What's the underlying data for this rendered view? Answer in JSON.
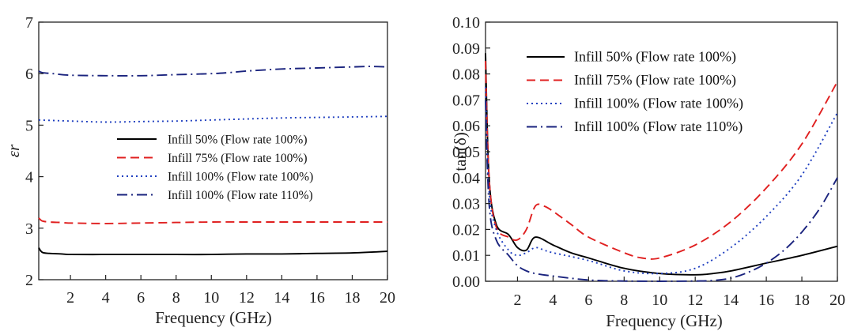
{
  "chart_data": [
    {
      "type": "line",
      "xlabel": "Frequency (GHz)",
      "ylabel": "εr",
      "xlim": [
        0.2,
        20
      ],
      "ylim": [
        2,
        7
      ],
      "xticks": [
        2,
        4,
        6,
        8,
        10,
        12,
        14,
        16,
        18,
        20
      ],
      "yticks": [
        2,
        3,
        4,
        5,
        6,
        7
      ],
      "legend_position": "center-right",
      "series": [
        {
          "name": "Infill 50%  (Flow rate 100%)",
          "color": "#000000",
          "dash": "solid",
          "x": [
            0.2,
            0.4,
            0.8,
            1.5,
            2,
            4,
            6,
            8,
            10,
            12,
            14,
            16,
            18,
            20
          ],
          "y": [
            2.62,
            2.53,
            2.51,
            2.5,
            2.49,
            2.49,
            2.49,
            2.49,
            2.49,
            2.5,
            2.5,
            2.51,
            2.52,
            2.55
          ]
        },
        {
          "name": "Infill 75%   (Flow rate 100%)",
          "color": "#e02020",
          "dash": "dashed",
          "x": [
            0.2,
            0.4,
            0.8,
            1.5,
            2,
            4,
            6,
            8,
            10,
            12,
            14,
            16,
            18,
            20
          ],
          "y": [
            3.2,
            3.14,
            3.12,
            3.11,
            3.1,
            3.09,
            3.1,
            3.11,
            3.12,
            3.12,
            3.12,
            3.12,
            3.12,
            3.12
          ]
        },
        {
          "name": "Infill 100% (Flow rate 100%)",
          "color": "#2040c0",
          "dash": "dotted",
          "x": [
            0.2,
            1,
            2,
            4,
            6,
            8,
            10,
            12,
            14,
            16,
            18,
            20
          ],
          "y": [
            5.1,
            5.09,
            5.08,
            5.06,
            5.07,
            5.08,
            5.1,
            5.12,
            5.14,
            5.15,
            5.16,
            5.17
          ]
        },
        {
          "name": "Infill 100% (Flow rate 110%)",
          "color": "#1a237e",
          "dash": "dashdot",
          "x": [
            0.2,
            0.4,
            1,
            2,
            4,
            6,
            8,
            10,
            11,
            12,
            14,
            16,
            18,
            19,
            20
          ],
          "y": [
            6.05,
            6.02,
            6.0,
            5.97,
            5.96,
            5.96,
            5.98,
            6.0,
            6.02,
            6.05,
            6.09,
            6.11,
            6.13,
            6.14,
            6.13
          ]
        }
      ]
    },
    {
      "type": "line",
      "xlabel": "Frequency (GHz)",
      "ylabel": "tan(δ)",
      "xlim": [
        0.2,
        20
      ],
      "ylim": [
        0,
        0.1
      ],
      "xticks": [
        2,
        4,
        6,
        8,
        10,
        12,
        14,
        16,
        18,
        20
      ],
      "yticks": [
        0.0,
        0.01,
        0.02,
        0.03,
        0.04,
        0.05,
        0.06,
        0.07,
        0.08,
        0.09,
        0.1
      ],
      "legend_position": "top",
      "series": [
        {
          "name": "Infill 50% (Flow rate 100%)",
          "color": "#000000",
          "dash": "solid",
          "x": [
            0.2,
            0.4,
            0.8,
            1.5,
            2,
            2.5,
            3,
            4,
            5,
            6,
            8,
            10,
            12,
            13,
            14,
            16,
            18,
            20
          ],
          "y": [
            0.088,
            0.04,
            0.022,
            0.018,
            0.013,
            0.012,
            0.017,
            0.014,
            0.011,
            0.009,
            0.005,
            0.003,
            0.0025,
            0.003,
            0.004,
            0.007,
            0.01,
            0.0135
          ]
        },
        {
          "name": "Infill 75% (Flow rate 100%)",
          "color": "#e02020",
          "dash": "dashed",
          "x": [
            0.2,
            0.4,
            0.8,
            1.5,
            2,
            2.5,
            3,
            3.5,
            4,
            5,
            6,
            8,
            9,
            10,
            12,
            14,
            16,
            18,
            20
          ],
          "y": [
            0.085,
            0.04,
            0.021,
            0.017,
            0.016,
            0.02,
            0.029,
            0.029,
            0.027,
            0.022,
            0.017,
            0.011,
            0.009,
            0.009,
            0.014,
            0.023,
            0.036,
            0.053,
            0.077
          ]
        },
        {
          "name": "Infill 100% (Flow rate 100%)",
          "color": "#2040c0",
          "dash": "dotted",
          "x": [
            0.2,
            0.4,
            0.8,
            1.5,
            2,
            2.5,
            3,
            3.5,
            4,
            6,
            8,
            10,
            12,
            14,
            16,
            18,
            20
          ],
          "y": [
            0.075,
            0.035,
            0.02,
            0.012,
            0.01,
            0.011,
            0.013,
            0.012,
            0.011,
            0.008,
            0.004,
            0.003,
            0.005,
            0.013,
            0.025,
            0.041,
            0.065
          ]
        },
        {
          "name": "Infill 100% (Flow rate 110%)",
          "color": "#1a237e",
          "dash": "dashdot",
          "x": [
            0.2,
            0.4,
            0.8,
            1.5,
            2,
            2.5,
            3,
            4,
            6,
            8,
            10,
            12,
            13,
            14,
            15,
            16,
            17,
            18,
            19,
            20
          ],
          "y": [
            0.07,
            0.03,
            0.016,
            0.01,
            0.006,
            0.004,
            0.003,
            0.002,
            0.0005,
            0.0001,
            0.0,
            0.0001,
            0.0003,
            0.0012,
            0.0035,
            0.007,
            0.012,
            0.019,
            0.028,
            0.04
          ]
        }
      ]
    }
  ]
}
